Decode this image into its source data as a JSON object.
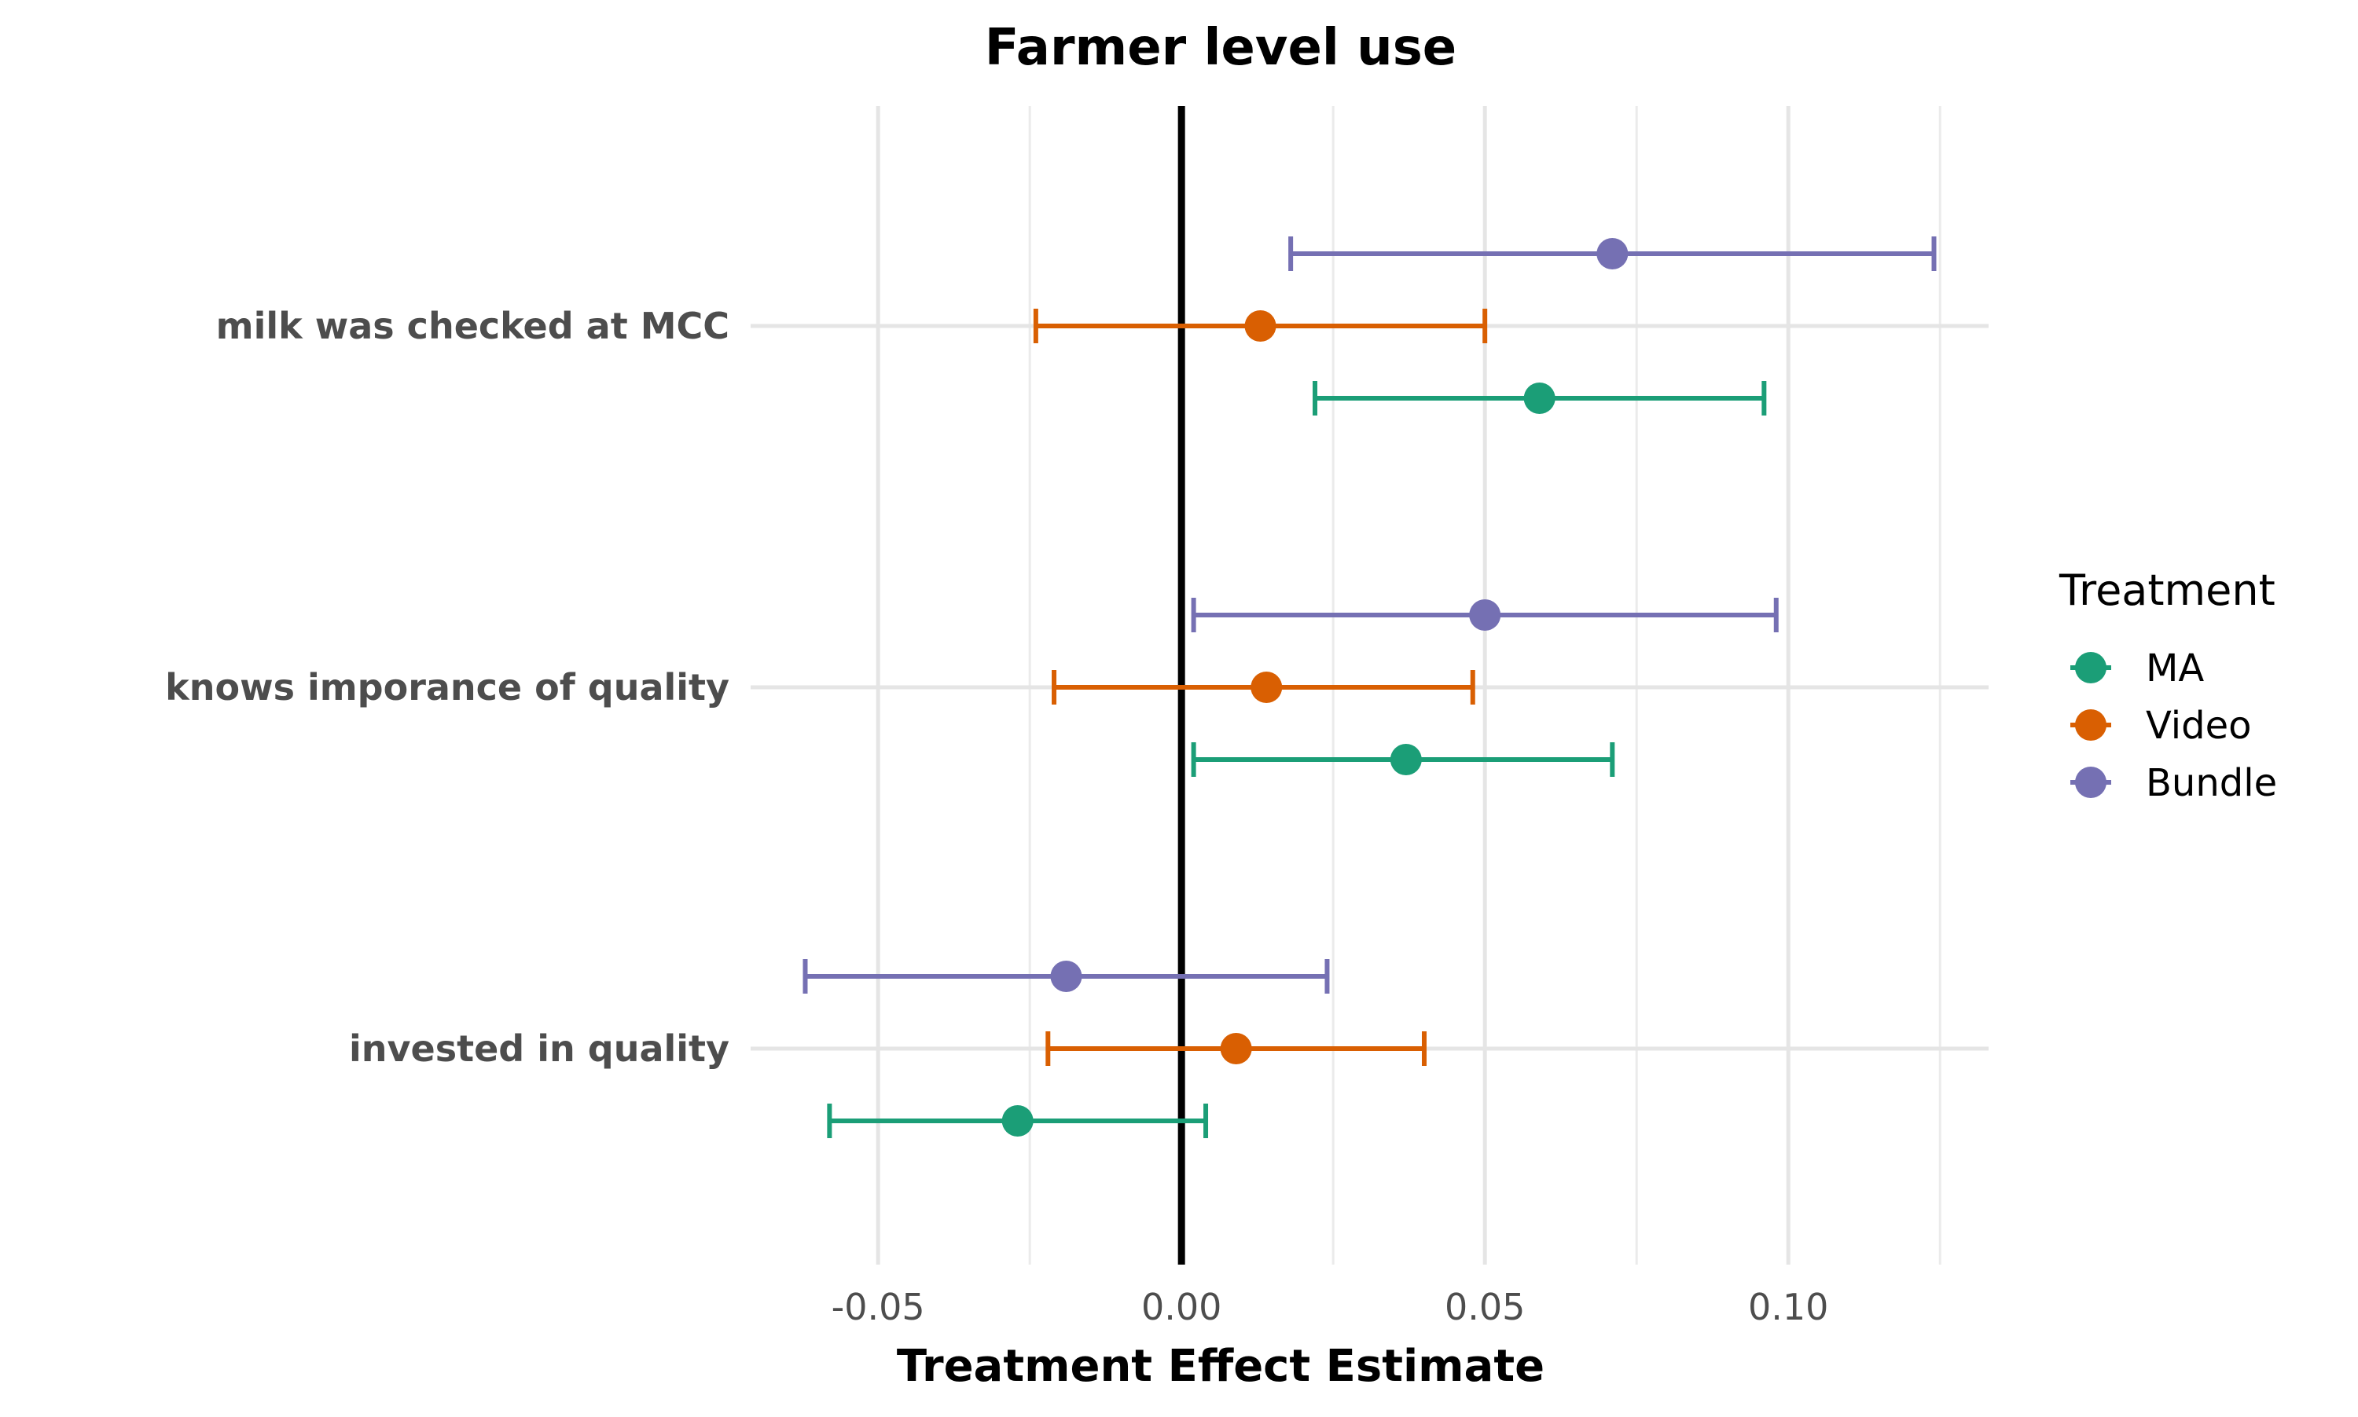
{
  "chart_data": {
    "type": "scatter",
    "title": "Farmer level use",
    "xlabel": "Treatment Effect Estimate",
    "ylabel": "",
    "xlim": [
      -0.071,
      0.133
    ],
    "x_ticks": [
      -0.05,
      0.0,
      0.05,
      0.1
    ],
    "x_tick_labels": [
      "-0.05",
      "0.00",
      "0.05",
      "0.10"
    ],
    "categories": [
      "milk was checked at MCC",
      "knows imporance of quality",
      "invested in quality"
    ],
    "reference_line_x": 0,
    "grid": true,
    "legend": {
      "title": "Treatment",
      "position": "right"
    },
    "series": [
      {
        "name": "MA",
        "color": "#1b9e77",
        "points": [
          {
            "category": "milk was checked at MCC",
            "estimate": 0.059,
            "low": 0.022,
            "high": 0.096
          },
          {
            "category": "knows imporance of quality",
            "estimate": 0.037,
            "low": 0.002,
            "high": 0.071
          },
          {
            "category": "invested in quality",
            "estimate": -0.027,
            "low": -0.058,
            "high": 0.004
          }
        ]
      },
      {
        "name": "Video",
        "color": "#d95f02",
        "points": [
          {
            "category": "milk was checked at MCC",
            "estimate": 0.013,
            "low": -0.024,
            "high": 0.05
          },
          {
            "category": "knows imporance of quality",
            "estimate": 0.014,
            "low": -0.021,
            "high": 0.048
          },
          {
            "category": "invested in quality",
            "estimate": 0.009,
            "low": -0.022,
            "high": 0.04
          }
        ]
      },
      {
        "name": "Bundle",
        "color": "#7570b3",
        "points": [
          {
            "category": "milk was checked at MCC",
            "estimate": 0.071,
            "low": 0.018,
            "high": 0.124
          },
          {
            "category": "knows imporance of quality",
            "estimate": 0.05,
            "low": 0.002,
            "high": 0.098
          },
          {
            "category": "invested in quality",
            "estimate": -0.019,
            "low": -0.062,
            "high": 0.024
          }
        ]
      }
    ]
  }
}
